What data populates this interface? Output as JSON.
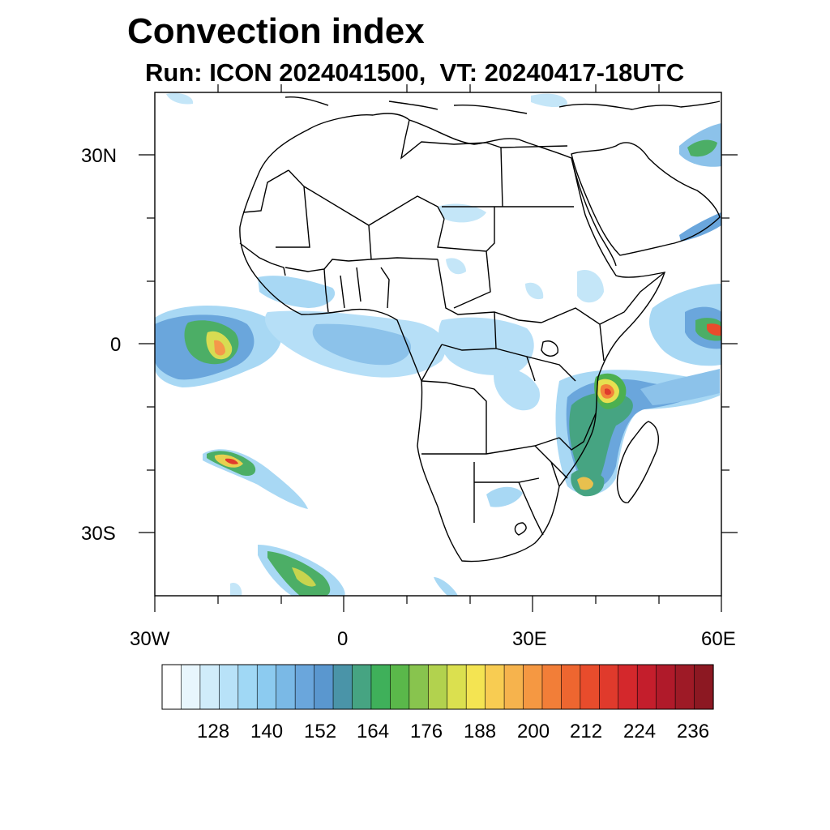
{
  "title": "Convection index",
  "subtitle": "Run: ICON 2024041500,  VT: 20240417-18UTC",
  "axes": {
    "y_ticks": [
      {
        "label": "30N",
        "value": 30
      },
      {
        "label": "0",
        "value": 0
      },
      {
        "label": "30S",
        "value": -30
      }
    ],
    "x_ticks": [
      {
        "label": "30W",
        "value": -30
      },
      {
        "label": "0",
        "value": 0
      },
      {
        "label": "30E",
        "value": 30
      },
      {
        "label": "60E",
        "value": 60
      }
    ],
    "lon_range": [
      -30,
      60
    ],
    "lat_range": [
      -40,
      40
    ]
  },
  "colorbar": {
    "labels": [
      "128",
      "140",
      "152",
      "164",
      "176",
      "188",
      "200",
      "212",
      "224",
      "236"
    ],
    "colors": [
      "#ffffff",
      "#e8f6fd",
      "#d0ecfa",
      "#b8e2f8",
      "#a0d8f5",
      "#8ccbf0",
      "#7ab9e6",
      "#6aa6dc",
      "#5a97cf",
      "#4a94a8",
      "#46a482",
      "#3fb05a",
      "#5ab84a",
      "#88c44e",
      "#b2d24e",
      "#dbe04f",
      "#f4e452",
      "#f8cc52",
      "#f6b34d",
      "#f59842",
      "#f27e38",
      "#ee6630",
      "#e84c2c",
      "#e03a2c",
      "#d4282c",
      "#c41e2c",
      "#b01a2a",
      "#9e1a26",
      "#8c1822"
    ]
  }
}
